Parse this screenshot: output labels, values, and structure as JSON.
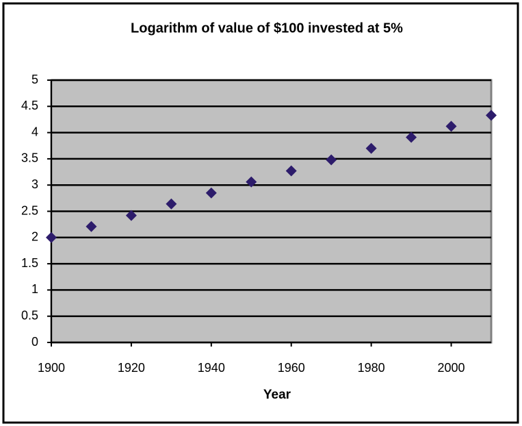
{
  "chart_data": {
    "type": "scatter",
    "title": "Logarithm of value of $100 invested at 5%",
    "x_label": "Year",
    "x": [
      1900,
      1910,
      1920,
      1930,
      1940,
      1950,
      1960,
      1970,
      1980,
      1990,
      2000,
      2010
    ],
    "series": [
      {
        "color": "#2d1c6b",
        "values": [
          2,
          2.21,
          2.42,
          2.64,
          2.85,
          3.06,
          3.27,
          3.48,
          3.7,
          3.91,
          4.12,
          4.33
        ]
      }
    ],
    "xlim": [
      1900,
      2010
    ],
    "xticks": [
      1900,
      1920,
      1940,
      1960,
      1980,
      2000
    ],
    "ylim": [
      0,
      5
    ],
    "yticks": [
      0,
      0.5,
      1,
      1.5,
      2,
      2.5,
      3,
      3.5,
      4,
      4.5,
      5
    ],
    "grid": true,
    "plot_background": "#c0c0c0"
  }
}
